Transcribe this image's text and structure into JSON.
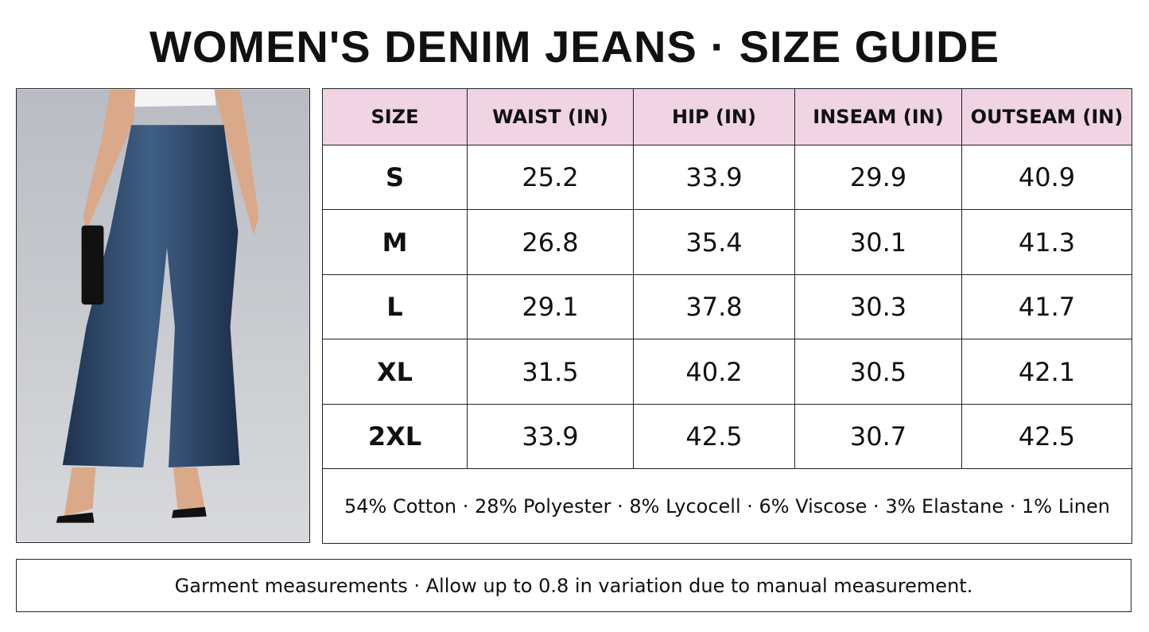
{
  "header": {
    "title": "WOMEN'S DENIM JEANS · SIZE GUIDE"
  },
  "table": {
    "columns": [
      "SIZE",
      "WAIST (IN)",
      "HIP (IN)",
      "INSEAM (IN)",
      "OUTSEAM (IN)"
    ],
    "rows": [
      [
        "S",
        "25.2",
        "33.9",
        "29.9",
        "40.9"
      ],
      [
        "M",
        "26.8",
        "35.4",
        "30.1",
        "41.3"
      ],
      [
        "L",
        "29.1",
        "37.8",
        "30.3",
        "41.7"
      ],
      [
        "XL",
        "31.5",
        "40.2",
        "30.5",
        "42.1"
      ],
      [
        "2XL",
        "33.9",
        "42.5",
        "30.7",
        "42.5"
      ]
    ],
    "composition": "54% Cotton · 28% Polyester · 8% Lycocell · 6% Viscose · 3% Elastane · 1% Linen"
  },
  "footer": {
    "note": "Garment measurements · Allow up to 0.8 in variation due to manual measurement."
  }
}
